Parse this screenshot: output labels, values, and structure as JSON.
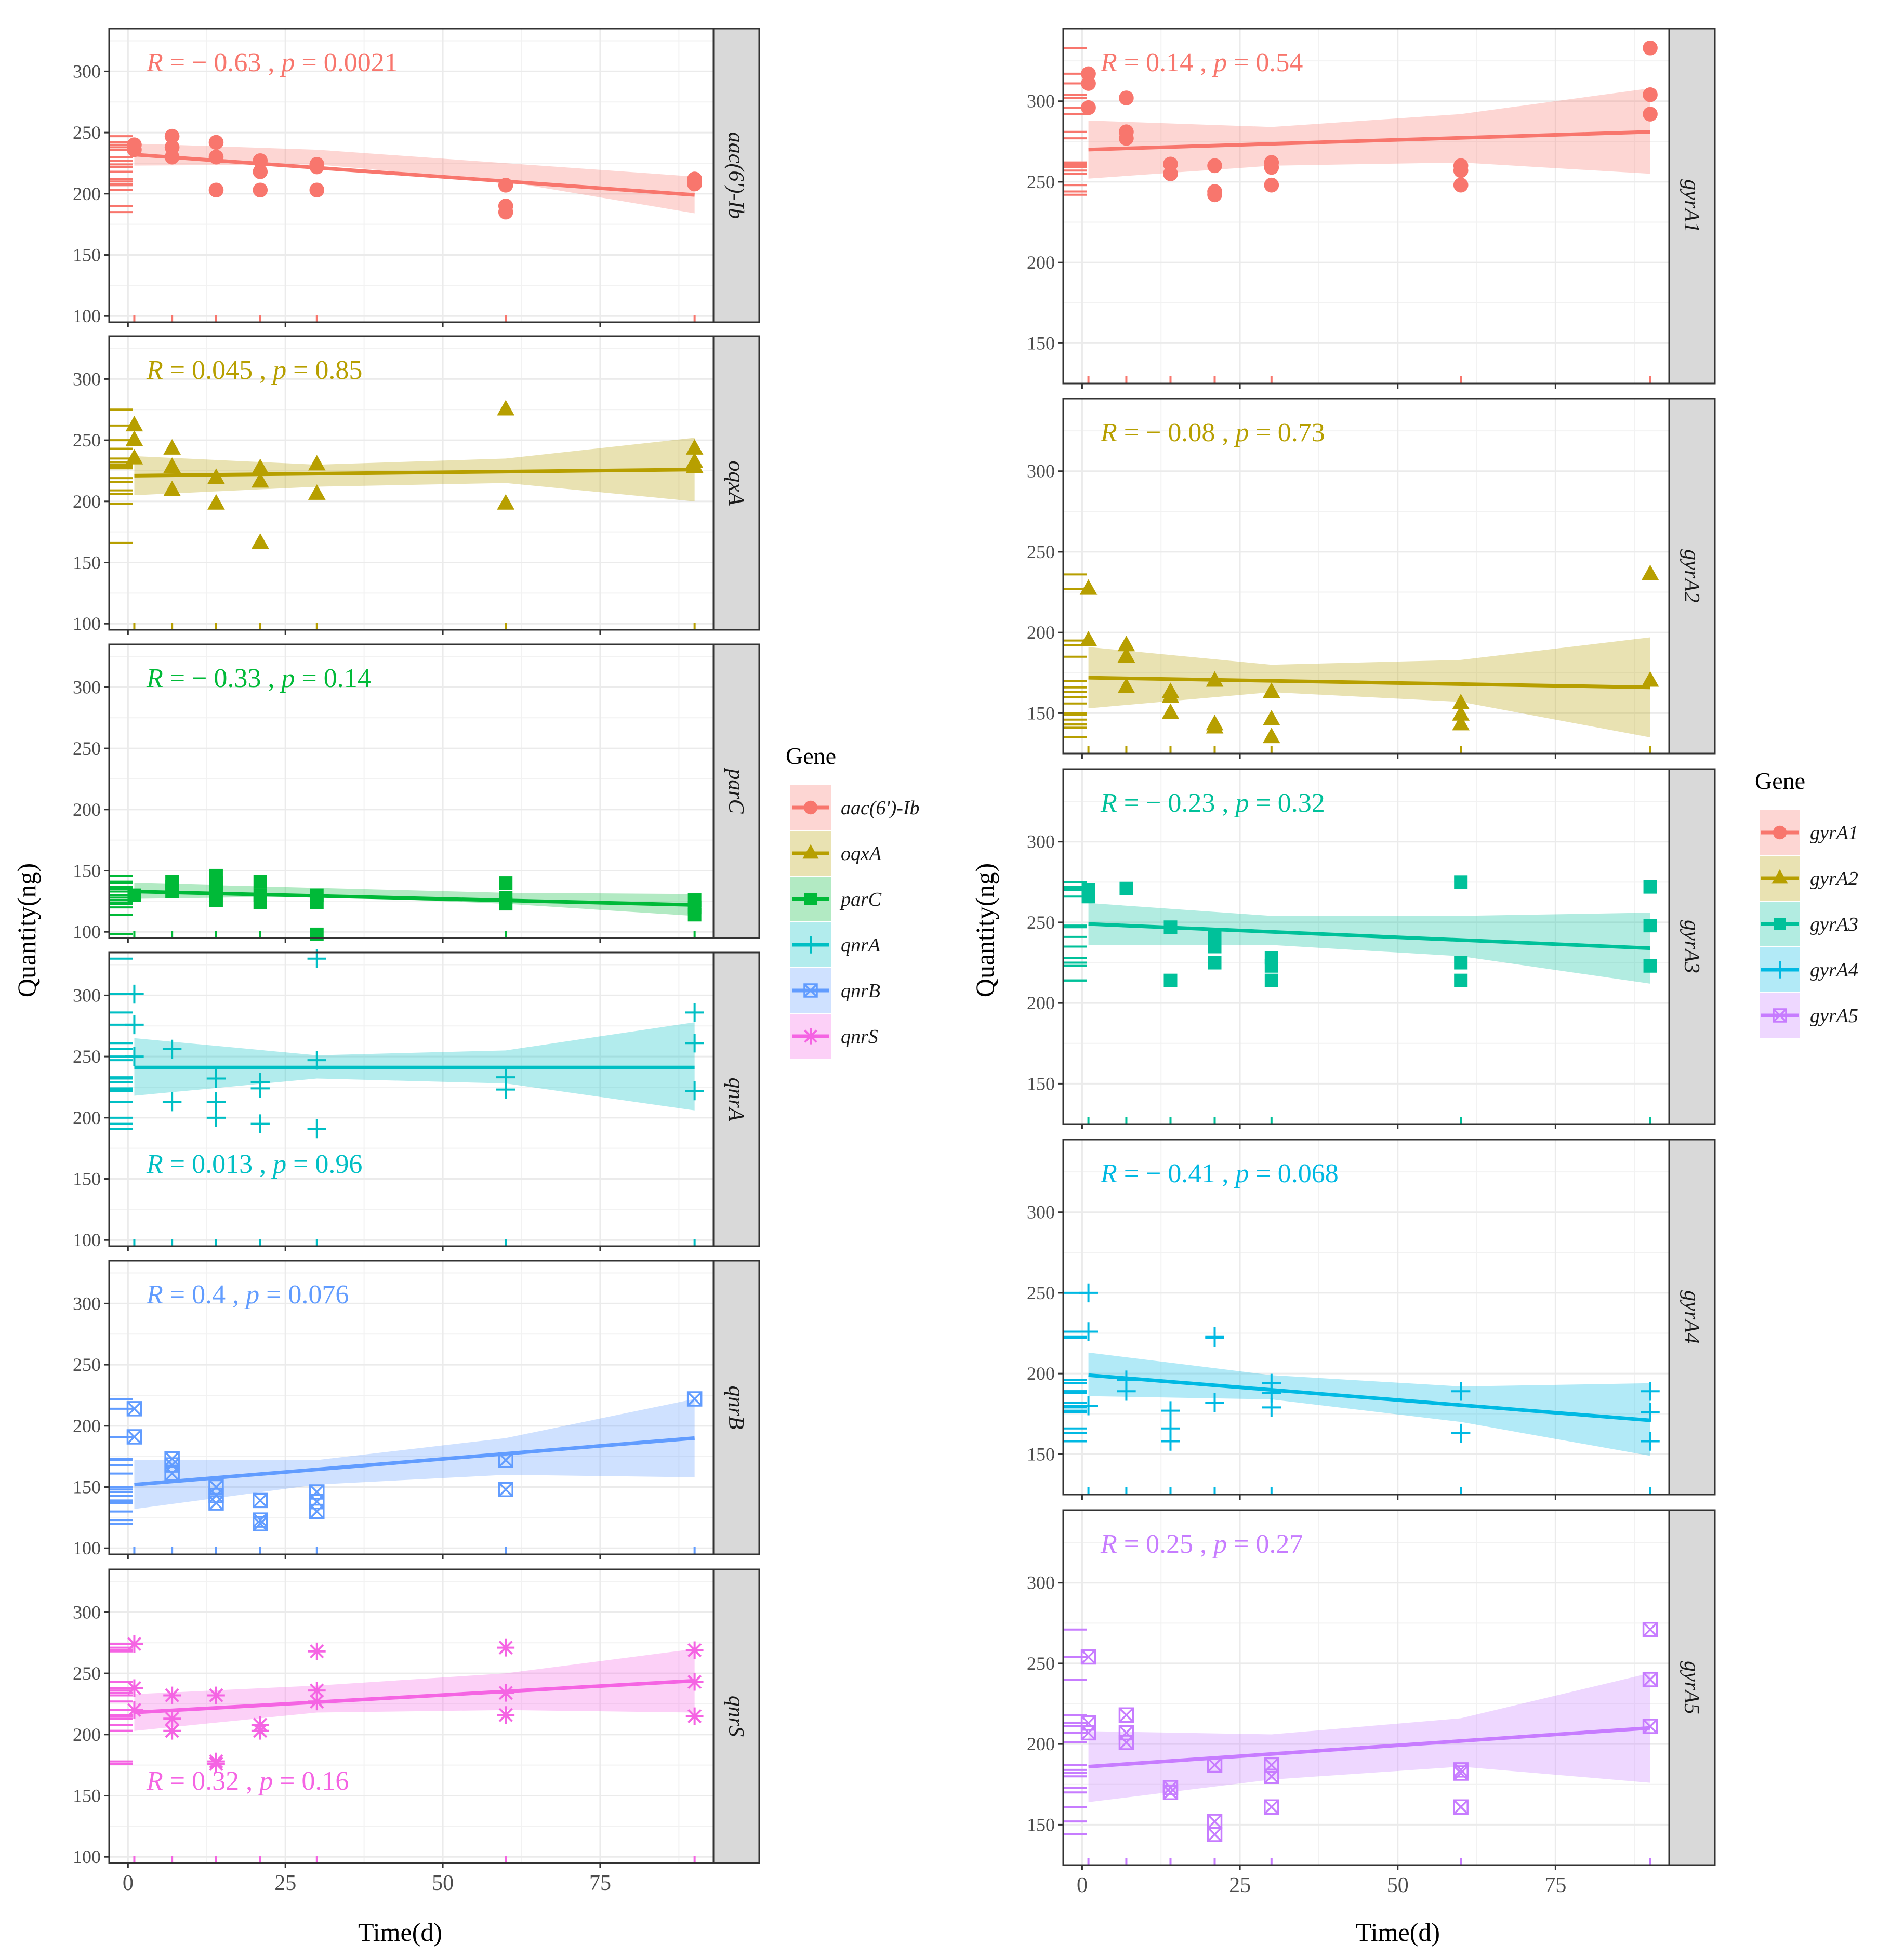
{
  "figure": {
    "ylabel": "Quantity(ng)",
    "xlabel": "Time(d)",
    "legend_title": "Gene"
  },
  "chart_data": [
    {
      "type": "scatter",
      "panel_group": "left",
      "gene": "aac(6')-Ib",
      "color": "#f8766d",
      "marker": "circle",
      "stat_label": "R = − 0.63 , p = 0.0021",
      "xlim": [
        -3,
        93
      ],
      "ylim": [
        95,
        335
      ],
      "xticks": [
        0,
        25,
        50,
        75
      ],
      "xtick_labels": [
        "0",
        "25",
        "50",
        "75"
      ],
      "yticks": [
        100,
        150,
        200,
        250,
        300
      ],
      "ytick_labels": [
        "100",
        "150",
        "200",
        "250",
        "300"
      ],
      "x": [
        1,
        1,
        7,
        7,
        7,
        14,
        14,
        14,
        21,
        21,
        21,
        30,
        30,
        30,
        60,
        60,
        60,
        90,
        90,
        90
      ],
      "y": [
        240,
        236,
        247,
        238,
        230,
        242,
        230,
        203,
        227,
        218,
        203,
        224,
        222,
        203,
        207,
        190,
        185,
        212,
        210,
        208
      ],
      "fit": [
        232,
        199
      ],
      "ci_lo": [
        223,
        224,
        210,
        184
      ],
      "ci_hi": [
        241,
        236,
        225,
        214
      ]
    },
    {
      "type": "scatter",
      "panel_group": "left",
      "gene": "oqxA",
      "color": "#b79f00",
      "marker": "triangle",
      "stat_label": "R = 0.045 , p = 0.85",
      "xlim": [
        -3,
        93
      ],
      "ylim": [
        95,
        335
      ],
      "xticks": [
        0,
        25,
        50,
        75
      ],
      "xtick_labels": [
        "0",
        "25",
        "50",
        "75"
      ],
      "yticks": [
        100,
        150,
        200,
        250,
        300
      ],
      "ytick_labels": [
        "100",
        "150",
        "200",
        "250",
        "300"
      ],
      "x": [
        1,
        1,
        1,
        7,
        7,
        7,
        14,
        14,
        21,
        21,
        21,
        30,
        30,
        60,
        60,
        90,
        90,
        90
      ],
      "y": [
        262,
        250,
        235,
        243,
        228,
        209,
        219,
        198,
        227,
        216,
        166,
        230,
        206,
        275,
        198,
        243,
        232,
        228
      ],
      "fit": [
        221,
        226
      ],
      "ci_lo": [
        205,
        212,
        215,
        200
      ],
      "ci_hi": [
        237,
        230,
        235,
        252
      ]
    },
    {
      "type": "scatter",
      "panel_group": "left",
      "gene": "parC",
      "color": "#00ba38",
      "marker": "square",
      "stat_label": "R = − 0.33 , p = 0.14",
      "xlim": [
        -3,
        93
      ],
      "ylim": [
        95,
        335
      ],
      "xticks": [
        0,
        25,
        50,
        75
      ],
      "xtick_labels": [
        "0",
        "25",
        "50",
        "75"
      ],
      "yticks": [
        100,
        150,
        200,
        250,
        300
      ],
      "ytick_labels": [
        "100",
        "150",
        "200",
        "250",
        "300"
      ],
      "x": [
        1,
        7,
        7,
        7,
        14,
        14,
        14,
        14,
        21,
        21,
        21,
        30,
        30,
        30,
        60,
        60,
        60,
        90,
        90,
        90
      ],
      "y": [
        130,
        141,
        137,
        133,
        146,
        140,
        135,
        126,
        141,
        130,
        124,
        130,
        124,
        98,
        140,
        128,
        123,
        126,
        120,
        114
      ],
      "fit": [
        133,
        122
      ],
      "ci_lo": [
        127,
        129,
        123,
        113
      ],
      "ci_hi": [
        140,
        136,
        132,
        131
      ]
    },
    {
      "type": "scatter",
      "panel_group": "left",
      "gene": "qnrA",
      "color": "#00bfc4",
      "marker": "plus",
      "stat_label": "R = 0.013 , p = 0.96",
      "xlim": [
        -3,
        93
      ],
      "ylim": [
        95,
        335
      ],
      "xticks": [
        0,
        25,
        50,
        75
      ],
      "xtick_labels": [
        "0",
        "25",
        "50",
        "75"
      ],
      "yticks": [
        100,
        150,
        200,
        250,
        300
      ],
      "ytick_labels": [
        "100",
        "150",
        "200",
        "250",
        "300"
      ],
      "x": [
        1,
        1,
        1,
        7,
        7,
        14,
        14,
        14,
        21,
        21,
        21,
        30,
        30,
        30,
        60,
        60,
        90,
        90,
        90
      ],
      "y": [
        301,
        276,
        250,
        256,
        213,
        232,
        213,
        200,
        229,
        224,
        195,
        330,
        247,
        191,
        233,
        223,
        286,
        261,
        222
      ],
      "fit": [
        241,
        241
      ],
      "ci_lo": [
        218,
        232,
        228,
        206
      ],
      "ci_hi": [
        265,
        251,
        255,
        278
      ]
    },
    {
      "type": "scatter",
      "panel_group": "left",
      "gene": "qnrB",
      "color": "#619cff",
      "marker": "square-cross",
      "stat_label": "R = 0.4 , p = 0.076",
      "xlim": [
        -3,
        93
      ],
      "ylim": [
        95,
        335
      ],
      "xticks": [
        0,
        25,
        50,
        75
      ],
      "xtick_labels": [
        "0",
        "25",
        "50",
        "75"
      ],
      "yticks": [
        100,
        150,
        200,
        250,
        300
      ],
      "ytick_labels": [
        "100",
        "150",
        "200",
        "250",
        "300"
      ],
      "x": [
        1,
        1,
        7,
        7,
        7,
        14,
        14,
        14,
        21,
        21,
        21,
        30,
        30,
        30,
        60,
        60,
        90
      ],
      "y": [
        214,
        191,
        173,
        168,
        161,
        150,
        143,
        137,
        139,
        123,
        120,
        146,
        138,
        130,
        172,
        148,
        222
      ],
      "fit": [
        152,
        190
      ],
      "ci_lo": [
        132,
        152,
        160,
        158
      ],
      "ci_hi": [
        172,
        172,
        190,
        222
      ]
    },
    {
      "type": "scatter",
      "panel_group": "left",
      "gene": "qnrS",
      "color": "#f564e3",
      "marker": "asterisk",
      "stat_label": "R = 0.32 , p = 0.16",
      "xlim": [
        -3,
        93
      ],
      "ylim": [
        95,
        335
      ],
      "xticks": [
        0,
        25,
        50,
        75
      ],
      "xtick_labels": [
        "0",
        "25",
        "50",
        "75"
      ],
      "yticks": [
        100,
        150,
        200,
        250,
        300
      ],
      "ytick_labels": [
        "100",
        "150",
        "200",
        "250",
        "300"
      ],
      "x": [
        1,
        1,
        1,
        7,
        7,
        7,
        14,
        14,
        14,
        21,
        21,
        30,
        30,
        30,
        60,
        60,
        60,
        90,
        90,
        90
      ],
      "y": [
        274,
        238,
        220,
        232,
        213,
        203,
        232,
        178,
        176,
        208,
        203,
        268,
        236,
        227,
        271,
        234,
        216,
        269,
        243,
        215
      ],
      "fit": [
        218,
        244
      ],
      "ci_lo": [
        203,
        218,
        220,
        218
      ],
      "ci_hi": [
        233,
        240,
        250,
        270
      ]
    },
    {
      "type": "scatter",
      "panel_group": "right",
      "gene": "gyrA1",
      "color": "#f8766d",
      "marker": "circle",
      "stat_label": "R = 0.14 , p = 0.54",
      "xlim": [
        -3,
        93
      ],
      "ylim": [
        125,
        345
      ],
      "xticks": [
        0,
        25,
        50,
        75
      ],
      "xtick_labels": [
        "0",
        "25",
        "50",
        "75"
      ],
      "yticks": [
        150,
        200,
        250,
        300
      ],
      "ytick_labels": [
        "150",
        "200",
        "250",
        "300"
      ],
      "x": [
        1,
        1,
        1,
        7,
        7,
        7,
        14,
        14,
        21,
        21,
        21,
        30,
        30,
        30,
        60,
        60,
        60,
        90,
        90,
        90
      ],
      "y": [
        317,
        311,
        296,
        302,
        281,
        277,
        261,
        255,
        260,
        244,
        242,
        262,
        259,
        248,
        260,
        257,
        248,
        333,
        304,
        292
      ],
      "fit": [
        270,
        281
      ],
      "ci_lo": [
        252,
        260,
        262,
        255
      ],
      "ci_hi": [
        288,
        284,
        292,
        308
      ]
    },
    {
      "type": "scatter",
      "panel_group": "right",
      "gene": "gyrA2",
      "color": "#b79f00",
      "marker": "triangle",
      "stat_label": "R = − 0.08 , p = 0.73",
      "xlim": [
        -3,
        93
      ],
      "ylim": [
        125,
        345
      ],
      "xticks": [
        0,
        25,
        50,
        75
      ],
      "xtick_labels": [
        "0",
        "25",
        "50",
        "75"
      ],
      "yticks": [
        150,
        200,
        250,
        300
      ],
      "ytick_labels": [
        "150",
        "200",
        "250",
        "300"
      ],
      "x": [
        1,
        1,
        7,
        7,
        7,
        14,
        14,
        14,
        21,
        21,
        21,
        30,
        30,
        30,
        60,
        60,
        60,
        90,
        90
      ],
      "y": [
        227,
        195,
        192,
        185,
        166,
        163,
        160,
        150,
        170,
        143,
        141,
        163,
        146,
        135,
        156,
        149,
        143,
        236,
        170
      ],
      "fit": [
        172,
        166
      ],
      "ci_lo": [
        153,
        163,
        157,
        135
      ],
      "ci_hi": [
        191,
        180,
        183,
        197
      ]
    },
    {
      "type": "scatter",
      "panel_group": "right",
      "gene": "gyrA3",
      "color": "#00c19a",
      "marker": "square",
      "stat_label": "R = − 0.23 , p = 0.32",
      "xlim": [
        -3,
        93
      ],
      "ylim": [
        125,
        345
      ],
      "xticks": [
        0,
        25,
        50,
        75
      ],
      "xtick_labels": [
        "0",
        "25",
        "50",
        "75"
      ],
      "yticks": [
        150,
        200,
        250,
        300
      ],
      "ytick_labels": [
        "150",
        "200",
        "250",
        "300"
      ],
      "x": [
        1,
        1,
        7,
        14,
        14,
        21,
        21,
        21,
        30,
        30,
        30,
        60,
        60,
        60,
        90,
        90,
        90
      ],
      "y": [
        270,
        266,
        271,
        247,
        214,
        241,
        235,
        225,
        228,
        223,
        214,
        275,
        225,
        214,
        272,
        248,
        223
      ],
      "fit": [
        249,
        234
      ],
      "ci_lo": [
        236,
        236,
        229,
        212
      ],
      "ci_hi": [
        262,
        254,
        254,
        256
      ]
    },
    {
      "type": "scatter",
      "panel_group": "right",
      "gene": "gyrA4",
      "color": "#00b9e3",
      "marker": "plus",
      "stat_label": "R = − 0.41 , p = 0.068",
      "xlim": [
        -3,
        93
      ],
      "ylim": [
        125,
        345
      ],
      "xticks": [
        0,
        25,
        50,
        75
      ],
      "xtick_labels": [
        "0",
        "25",
        "50",
        "75"
      ],
      "yticks": [
        150,
        200,
        250,
        300
      ],
      "ytick_labels": [
        "150",
        "200",
        "250",
        "300"
      ],
      "x": [
        1,
        1,
        1,
        7,
        7,
        14,
        14,
        14,
        21,
        21,
        21,
        30,
        30,
        30,
        60,
        60,
        90,
        90,
        90
      ],
      "y": [
        250,
        226,
        180,
        196,
        189,
        177,
        166,
        158,
        223,
        222,
        182,
        194,
        188,
        179,
        189,
        163,
        189,
        176,
        158
      ],
      "fit": [
        199,
        171
      ],
      "ci_lo": [
        186,
        184,
        170,
        149
      ],
      "ci_hi": [
        213,
        199,
        192,
        194
      ]
    },
    {
      "type": "scatter",
      "panel_group": "right",
      "gene": "gyrA5",
      "color": "#c77cff",
      "marker": "square-cross",
      "stat_label": "R = 0.25 , p = 0.27",
      "xlim": [
        -3,
        93
      ],
      "ylim": [
        125,
        345
      ],
      "xticks": [
        0,
        25,
        50,
        75
      ],
      "xtick_labels": [
        "0",
        "25",
        "50",
        "75"
      ],
      "yticks": [
        150,
        200,
        250,
        300
      ],
      "ytick_labels": [
        "150",
        "200",
        "250",
        "300"
      ],
      "x": [
        1,
        1,
        1,
        7,
        7,
        7,
        14,
        14,
        21,
        21,
        21,
        30,
        30,
        30,
        60,
        60,
        60,
        90,
        90,
        90
      ],
      "y": [
        254,
        213,
        207,
        218,
        207,
        201,
        173,
        170,
        187,
        152,
        144,
        187,
        180,
        161,
        184,
        182,
        161,
        271,
        240,
        211
      ],
      "fit": [
        186,
        210
      ],
      "ci_lo": [
        164,
        178,
        186,
        176
      ],
      "ci_hi": [
        208,
        206,
        216,
        244
      ]
    }
  ],
  "legends": [
    {
      "title": "Gene",
      "items": [
        {
          "label": "aac(6')-Ib",
          "color": "#f8766d",
          "marker": "circle"
        },
        {
          "label": "oqxA",
          "color": "#b79f00",
          "marker": "triangle"
        },
        {
          "label": "parC",
          "color": "#00ba38",
          "marker": "square"
        },
        {
          "label": "qnrA",
          "color": "#00bfc4",
          "marker": "plus"
        },
        {
          "label": "qnrB",
          "color": "#619cff",
          "marker": "square-cross"
        },
        {
          "label": "qnrS",
          "color": "#f564e3",
          "marker": "asterisk"
        }
      ]
    },
    {
      "title": "Gene",
      "items": [
        {
          "label": "gyrA1",
          "color": "#f8766d",
          "marker": "circle"
        },
        {
          "label": "gyrA2",
          "color": "#b79f00",
          "marker": "triangle"
        },
        {
          "label": "gyrA3",
          "color": "#00c19a",
          "marker": "square"
        },
        {
          "label": "gyrA4",
          "color": "#00b9e3",
          "marker": "plus"
        },
        {
          "label": "gyrA5",
          "color": "#c77cff",
          "marker": "square-cross"
        }
      ]
    }
  ]
}
